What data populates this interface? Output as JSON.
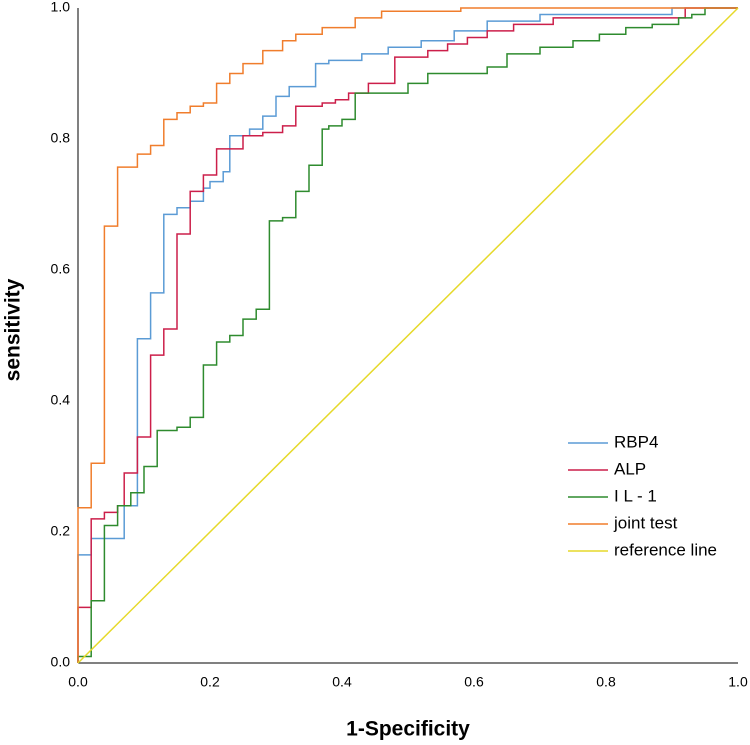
{
  "chart_data": {
    "type": "line",
    "xlabel": "1-Specificity",
    "ylabel": "sensitivity",
    "xlim": [
      0,
      1
    ],
    "ylim": [
      0,
      1
    ],
    "xticks": [
      {
        "value": 0,
        "label": "0.0"
      },
      0.2,
      0.4,
      0.6,
      0.8,
      {
        "value": 1,
        "label": "1.0"
      }
    ],
    "yticks": [
      {
        "value": 0,
        "label": "0.0"
      },
      0.2,
      0.4,
      0.6,
      0.8,
      {
        "value": 1,
        "label": "1.0"
      }
    ],
    "legend": "lower right",
    "series": [
      {
        "name": "RBP4",
        "color": "#5b9bd5",
        "x": [
          0,
          0,
          0.02,
          0.02,
          0.07,
          0.07,
          0.09,
          0.09,
          0.11,
          0.11,
          0.13,
          0.13,
          0.15,
          0.15,
          0.17,
          0.17,
          0.19,
          0.19,
          0.2,
          0.2,
          0.22,
          0.22,
          0.23,
          0.23,
          0.26,
          0.26,
          0.28,
          0.28,
          0.3,
          0.3,
          0.32,
          0.32,
          0.36,
          0.36,
          0.38,
          0.38,
          0.43,
          0.43,
          0.47,
          0.47,
          0.52,
          0.52,
          0.57,
          0.57,
          0.62,
          0.62,
          0.7,
          0.7,
          0.9,
          0.9,
          1
        ],
        "y": [
          0,
          0.165,
          0.165,
          0.19,
          0.19,
          0.24,
          0.24,
          0.495,
          0.495,
          0.565,
          0.565,
          0.685,
          0.685,
          0.695,
          0.695,
          0.705,
          0.705,
          0.725,
          0.725,
          0.735,
          0.735,
          0.75,
          0.75,
          0.805,
          0.805,
          0.815,
          0.815,
          0.835,
          0.835,
          0.865,
          0.865,
          0.88,
          0.88,
          0.915,
          0.915,
          0.92,
          0.92,
          0.93,
          0.93,
          0.94,
          0.94,
          0.95,
          0.95,
          0.965,
          0.965,
          0.98,
          0.98,
          0.99,
          0.99,
          1,
          1
        ]
      },
      {
        "name": "ALP",
        "color": "#cc1f4a",
        "x": [
          0,
          0,
          0.02,
          0.02,
          0.04,
          0.04,
          0.06,
          0.06,
          0.07,
          0.07,
          0.09,
          0.09,
          0.11,
          0.11,
          0.13,
          0.13,
          0.15,
          0.15,
          0.17,
          0.17,
          0.19,
          0.19,
          0.21,
          0.21,
          0.25,
          0.25,
          0.28,
          0.28,
          0.31,
          0.31,
          0.33,
          0.33,
          0.37,
          0.37,
          0.39,
          0.39,
          0.41,
          0.41,
          0.44,
          0.44,
          0.48,
          0.48,
          0.53,
          0.53,
          0.56,
          0.56,
          0.59,
          0.59,
          0.62,
          0.62,
          0.66,
          0.66,
          0.72,
          0.72,
          0.92,
          0.92,
          1
        ],
        "y": [
          0,
          0.085,
          0.085,
          0.22,
          0.22,
          0.23,
          0.23,
          0.24,
          0.24,
          0.29,
          0.29,
          0.345,
          0.345,
          0.47,
          0.47,
          0.51,
          0.51,
          0.655,
          0.655,
          0.72,
          0.72,
          0.745,
          0.745,
          0.785,
          0.785,
          0.805,
          0.805,
          0.81,
          0.81,
          0.82,
          0.82,
          0.85,
          0.85,
          0.855,
          0.855,
          0.86,
          0.86,
          0.87,
          0.87,
          0.885,
          0.885,
          0.925,
          0.925,
          0.935,
          0.935,
          0.945,
          0.945,
          0.955,
          0.955,
          0.965,
          0.965,
          0.975,
          0.975,
          0.985,
          0.985,
          1,
          1
        ]
      },
      {
        "name": "I L - 1",
        "color": "#2e8b2e",
        "x": [
          0,
          0,
          0.02,
          0.02,
          0.04,
          0.04,
          0.06,
          0.06,
          0.08,
          0.08,
          0.1,
          0.1,
          0.12,
          0.12,
          0.15,
          0.15,
          0.17,
          0.17,
          0.19,
          0.19,
          0.21,
          0.21,
          0.23,
          0.23,
          0.25,
          0.25,
          0.27,
          0.27,
          0.29,
          0.29,
          0.31,
          0.31,
          0.33,
          0.33,
          0.35,
          0.35,
          0.37,
          0.37,
          0.38,
          0.38,
          0.4,
          0.4,
          0.42,
          0.42,
          0.5,
          0.5,
          0.53,
          0.53,
          0.62,
          0.62,
          0.65,
          0.65,
          0.7,
          0.7,
          0.75,
          0.75,
          0.79,
          0.79,
          0.83,
          0.83,
          0.87,
          0.87,
          0.91,
          0.91,
          0.93,
          0.93,
          0.95,
          0.95,
          1
        ],
        "y": [
          0,
          0.01,
          0.01,
          0.095,
          0.095,
          0.21,
          0.21,
          0.24,
          0.24,
          0.26,
          0.26,
          0.3,
          0.3,
          0.355,
          0.355,
          0.36,
          0.36,
          0.375,
          0.375,
          0.455,
          0.455,
          0.49,
          0.49,
          0.5,
          0.5,
          0.525,
          0.525,
          0.54,
          0.54,
          0.675,
          0.675,
          0.68,
          0.68,
          0.72,
          0.72,
          0.76,
          0.76,
          0.815,
          0.815,
          0.82,
          0.82,
          0.83,
          0.83,
          0.87,
          0.87,
          0.885,
          0.885,
          0.9,
          0.9,
          0.91,
          0.91,
          0.93,
          0.93,
          0.94,
          0.94,
          0.95,
          0.95,
          0.96,
          0.96,
          0.97,
          0.97,
          0.975,
          0.975,
          0.985,
          0.985,
          0.99,
          0.99,
          1,
          1
        ]
      },
      {
        "name": "joint test",
        "color": "#f07d2c",
        "x": [
          0,
          0,
          0.02,
          0.02,
          0.04,
          0.04,
          0.06,
          0.06,
          0.09,
          0.09,
          0.11,
          0.11,
          0.13,
          0.13,
          0.15,
          0.15,
          0.17,
          0.17,
          0.19,
          0.19,
          0.21,
          0.21,
          0.23,
          0.23,
          0.25,
          0.25,
          0.28,
          0.28,
          0.31,
          0.31,
          0.33,
          0.33,
          0.37,
          0.37,
          0.42,
          0.42,
          0.46,
          0.46,
          0.58,
          0.58,
          1
        ],
        "y": [
          0,
          0.237,
          0.237,
          0.305,
          0.305,
          0.667,
          0.667,
          0.757,
          0.757,
          0.777,
          0.777,
          0.79,
          0.79,
          0.83,
          0.83,
          0.84,
          0.84,
          0.85,
          0.85,
          0.855,
          0.855,
          0.885,
          0.885,
          0.9,
          0.9,
          0.915,
          0.915,
          0.935,
          0.935,
          0.95,
          0.95,
          0.96,
          0.96,
          0.97,
          0.97,
          0.985,
          0.985,
          0.995,
          0.995,
          1,
          1
        ]
      },
      {
        "name": "reference line",
        "color": "#e6d92a",
        "x": [
          0,
          1
        ],
        "y": [
          0,
          1
        ]
      }
    ]
  }
}
